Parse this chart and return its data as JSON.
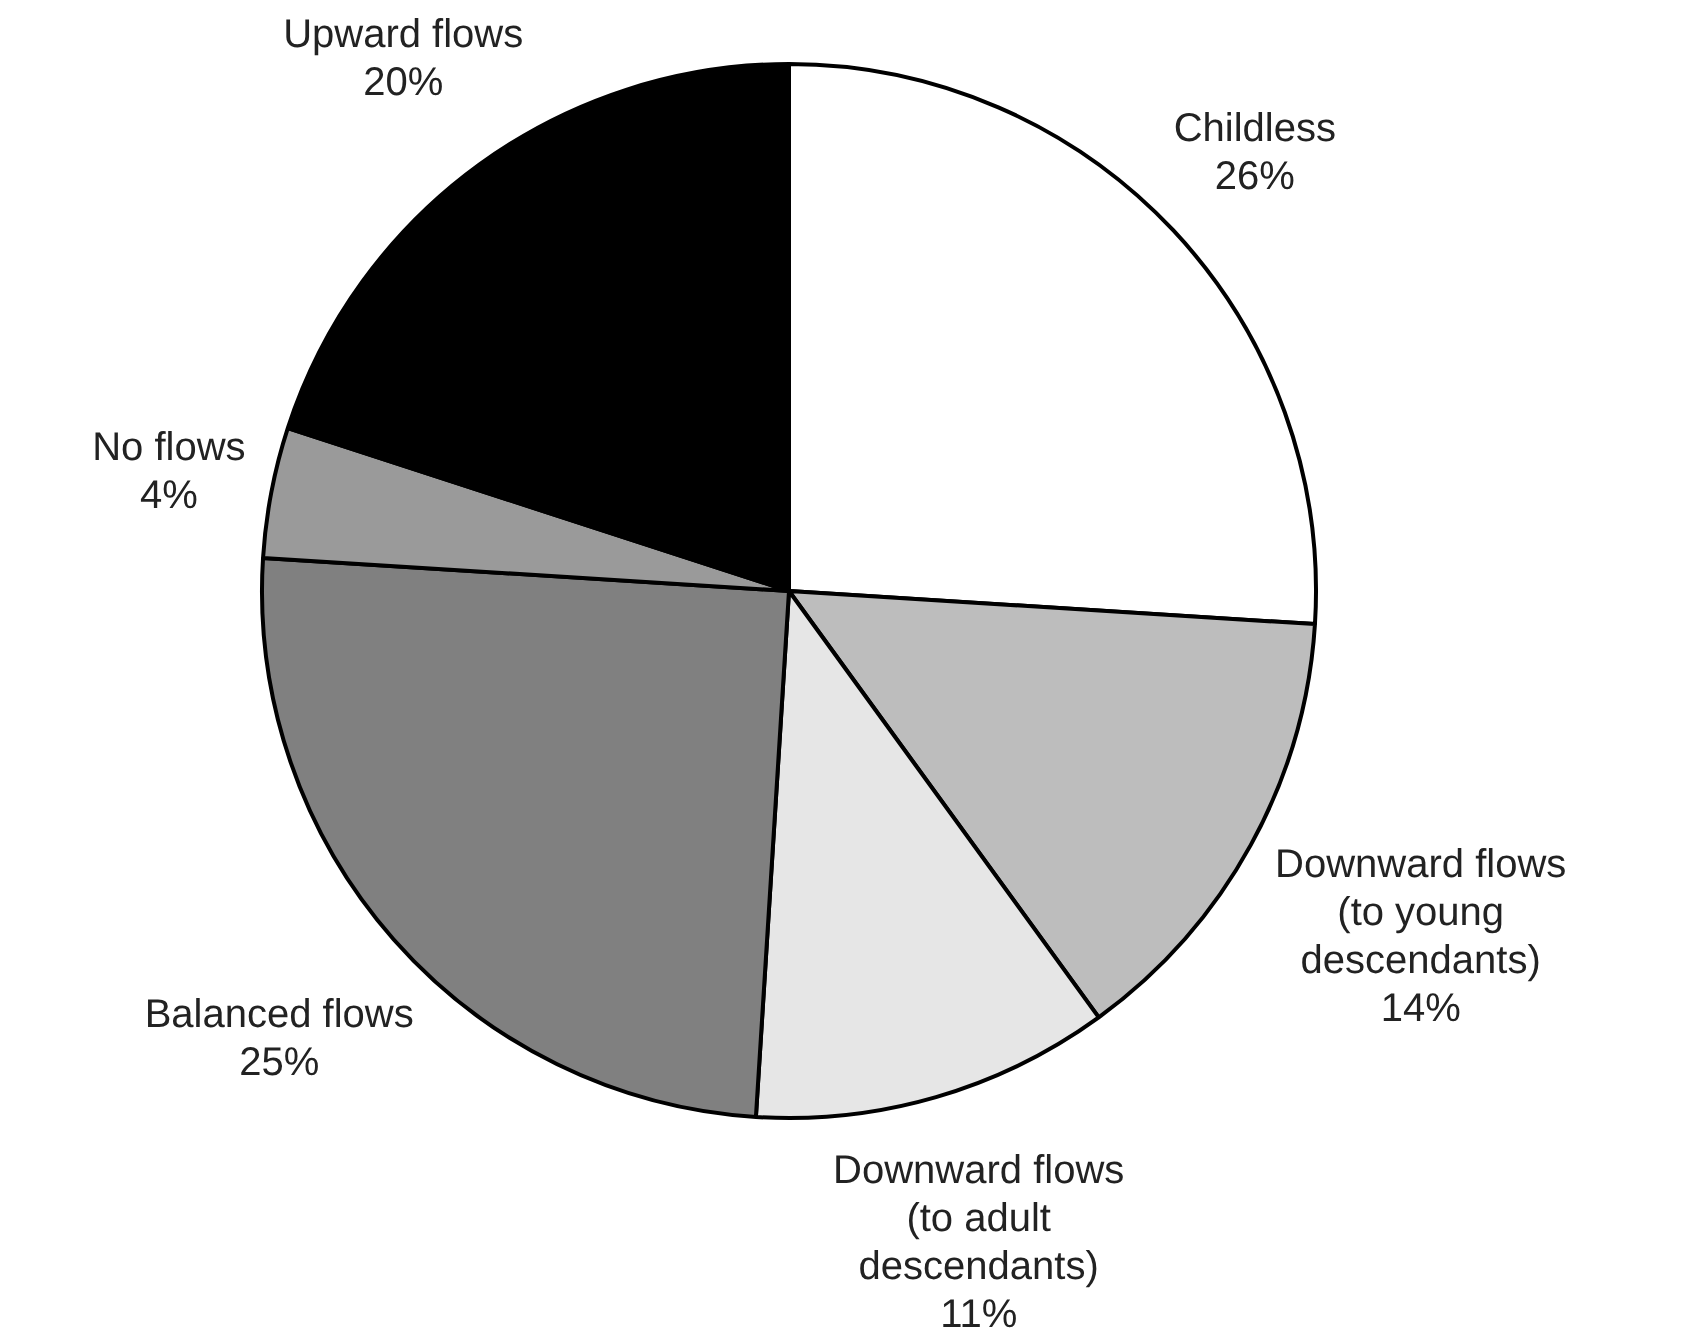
{
  "chart_data": {
    "type": "pie",
    "categories": [
      "Childless",
      "Downward flows (to young descendants)",
      "Downward flows (to adult descendants)",
      "Balanced flows",
      "No flows",
      "Upward flows"
    ],
    "values": [
      26,
      14,
      11,
      25,
      4,
      20
    ],
    "value_labels": [
      "26%",
      "14%",
      "11%",
      "25%",
      "4%",
      "20%"
    ],
    "colors": [
      "#ffffff",
      "#bdbdbd",
      "#e6e6e6",
      "#808080",
      "#9a9a9a",
      "#000000"
    ],
    "legend": false
  }
}
